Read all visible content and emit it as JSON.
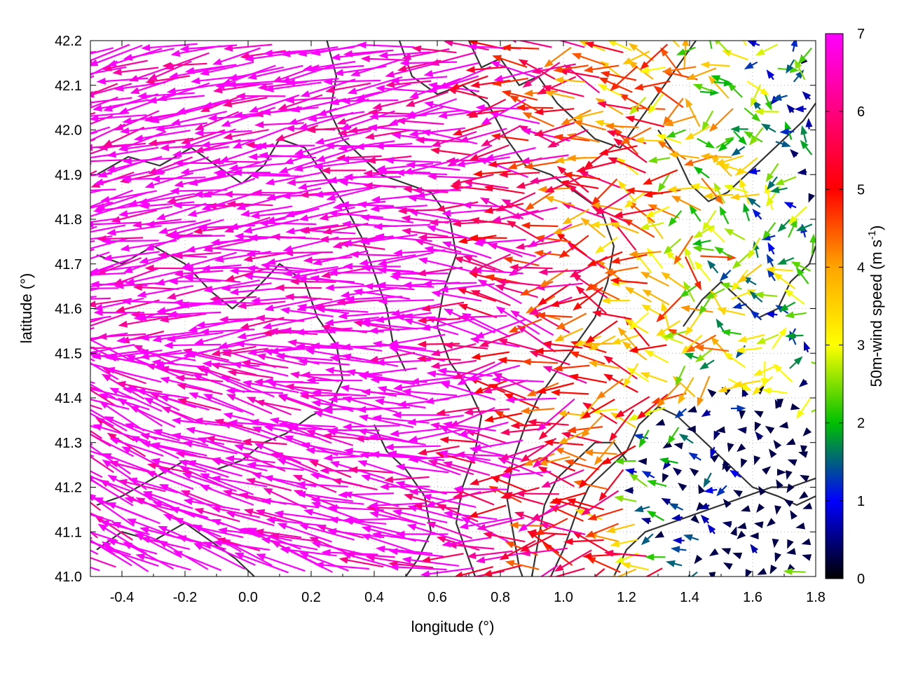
{
  "chart_data": {
    "type": "vector-field",
    "xlabel": "longitude (°)",
    "ylabel": "latitude (°)",
    "xlim": [
      -0.5,
      1.8
    ],
    "ylim": [
      41.0,
      42.2
    ],
    "xticks": [
      "-0.4",
      "-0.2",
      "0.0",
      "0.2",
      "0.4",
      "0.6",
      "0.8",
      "1.0",
      "1.2",
      "1.4",
      "1.6",
      "1.8"
    ],
    "xtick_values": [
      -0.4,
      -0.2,
      0.0,
      0.2,
      0.4,
      0.6,
      0.8,
      1.0,
      1.2,
      1.4,
      1.6,
      1.8
    ],
    "yticks": [
      "41.0",
      "41.1",
      "41.2",
      "41.3",
      "41.4",
      "41.5",
      "41.6",
      "41.7",
      "41.8",
      "41.9",
      "42.0",
      "42.1",
      "42.2"
    ],
    "ytick_values": [
      41.0,
      41.1,
      41.2,
      41.3,
      41.4,
      41.5,
      41.6,
      41.7,
      41.8,
      41.9,
      42.0,
      42.1,
      42.2
    ],
    "grid": "dotted",
    "colorbar": {
      "label": "50m-wind speed (m s-1)",
      "label_base": "50m-wind speed (m s",
      "label_exp": "-1",
      "label_close": ")",
      "range": [
        0,
        7
      ],
      "ticks": [
        "0",
        "1",
        "2",
        "3",
        "4",
        "5",
        "6",
        "7"
      ],
      "tick_values": [
        0,
        1,
        2,
        3,
        4,
        5,
        6,
        7
      ],
      "colors": [
        "#000000",
        "#0000ff",
        "#00c000",
        "#ffff00",
        "#ffa500",
        "#ff0000",
        "#ff00ff"
      ],
      "color_positions": [
        0,
        1,
        2,
        3,
        4,
        5,
        7
      ]
    },
    "contours": [
      {
        "level": "terrain",
        "points": [
          [
            -0.48,
            41.72
          ],
          [
            -0.4,
            41.7
          ],
          [
            -0.3,
            41.74
          ],
          [
            -0.2,
            41.7
          ],
          [
            -0.12,
            41.64
          ],
          [
            -0.05,
            41.6
          ],
          [
            0.02,
            41.64
          ],
          [
            0.1,
            41.7
          ],
          [
            0.18,
            41.66
          ],
          [
            0.22,
            41.58
          ],
          [
            0.28,
            41.52
          ],
          [
            0.3,
            41.44
          ],
          [
            0.26,
            41.38
          ],
          [
            0.2,
            41.36
          ],
          [
            0.12,
            41.32
          ],
          [
            0.05,
            41.3
          ],
          [
            -0.02,
            41.26
          ],
          [
            -0.1,
            41.24
          ],
          [
            -0.2,
            41.26
          ],
          [
            -0.3,
            41.22
          ],
          [
            -0.4,
            41.18
          ],
          [
            -0.48,
            41.16
          ]
        ]
      },
      {
        "level": "terrain",
        "points": [
          [
            -0.48,
            41.9
          ],
          [
            -0.38,
            41.94
          ],
          [
            -0.28,
            41.92
          ],
          [
            -0.18,
            41.96
          ],
          [
            -0.1,
            41.92
          ],
          [
            -0.02,
            41.88
          ],
          [
            0.05,
            41.92
          ],
          [
            0.1,
            41.98
          ],
          [
            0.18,
            41.96
          ],
          [
            0.24,
            41.9
          ],
          [
            0.3,
            41.84
          ],
          [
            0.36,
            41.76
          ],
          [
            0.4,
            41.68
          ],
          [
            0.44,
            41.6
          ],
          [
            0.46,
            41.52
          ],
          [
            0.5,
            41.46
          ]
        ]
      },
      {
        "level": "terrain",
        "points": [
          [
            0.25,
            42.2
          ],
          [
            0.28,
            42.12
          ],
          [
            0.26,
            42.04
          ],
          [
            0.3,
            41.98
          ],
          [
            0.36,
            41.94
          ],
          [
            0.42,
            41.9
          ],
          [
            0.5,
            41.88
          ],
          [
            0.58,
            41.86
          ],
          [
            0.64,
            41.8
          ],
          [
            0.66,
            41.72
          ],
          [
            0.62,
            41.64
          ],
          [
            0.6,
            41.56
          ],
          [
            0.64,
            41.48
          ],
          [
            0.7,
            41.42
          ],
          [
            0.74,
            41.36
          ],
          [
            0.72,
            41.28
          ],
          [
            0.68,
            41.2
          ],
          [
            0.66,
            41.12
          ],
          [
            0.7,
            41.04
          ],
          [
            0.72,
            41.0
          ]
        ]
      },
      {
        "level": "terrain",
        "points": [
          [
            0.48,
            42.2
          ],
          [
            0.52,
            42.12
          ],
          [
            0.6,
            42.08
          ],
          [
            0.68,
            42.1
          ],
          [
            0.76,
            42.06
          ],
          [
            0.82,
            41.98
          ],
          [
            0.88,
            41.92
          ],
          [
            0.96,
            41.9
          ],
          [
            1.04,
            41.86
          ],
          [
            1.12,
            41.82
          ],
          [
            1.16,
            41.74
          ],
          [
            1.14,
            41.66
          ],
          [
            1.1,
            41.58
          ],
          [
            1.04,
            41.52
          ],
          [
            0.98,
            41.46
          ],
          [
            0.92,
            41.4
          ],
          [
            0.88,
            41.34
          ],
          [
            0.84,
            41.26
          ],
          [
            0.82,
            41.18
          ],
          [
            0.84,
            41.1
          ],
          [
            0.86,
            41.02
          ],
          [
            0.87,
            41.0
          ]
        ]
      },
      {
        "level": "terrain",
        "points": [
          [
            0.7,
            42.2
          ],
          [
            0.74,
            42.14
          ],
          [
            0.8,
            42.16
          ],
          [
            0.86,
            42.1
          ],
          [
            0.92,
            42.12
          ],
          [
            0.98,
            42.06
          ],
          [
            1.04,
            42.02
          ],
          [
            1.1,
            41.98
          ],
          [
            1.18,
            41.96
          ],
          [
            1.24,
            42.02
          ],
          [
            1.3,
            42.08
          ],
          [
            1.36,
            42.14
          ],
          [
            1.42,
            42.2
          ]
        ]
      },
      {
        "level": "terrain",
        "points": [
          [
            0.96,
            41.0
          ],
          [
            1.0,
            41.06
          ],
          [
            1.04,
            41.14
          ],
          [
            1.08,
            41.2
          ],
          [
            1.14,
            41.24
          ],
          [
            1.2,
            41.28
          ],
          [
            1.24,
            41.34
          ],
          [
            1.3,
            41.38
          ],
          [
            1.36,
            41.36
          ],
          [
            1.42,
            41.32
          ],
          [
            1.48,
            41.28
          ],
          [
            1.54,
            41.24
          ],
          [
            1.6,
            41.2
          ],
          [
            1.68,
            41.18
          ],
          [
            1.74,
            41.16
          ],
          [
            1.8,
            41.18
          ]
        ]
      },
      {
        "level": "terrain",
        "points": [
          [
            1.16,
            41.0
          ],
          [
            1.2,
            41.06
          ],
          [
            1.26,
            41.1
          ],
          [
            1.34,
            41.12
          ],
          [
            1.42,
            41.14
          ],
          [
            1.5,
            41.16
          ],
          [
            1.58,
            41.18
          ],
          [
            1.66,
            41.2
          ],
          [
            1.72,
            41.2
          ],
          [
            1.8,
            41.22
          ]
        ]
      },
      {
        "level": "terrain",
        "points": [
          [
            1.38,
            41.56
          ],
          [
            1.44,
            41.62
          ],
          [
            1.5,
            41.66
          ],
          [
            1.56,
            41.62
          ],
          [
            1.62,
            41.58
          ],
          [
            1.68,
            41.6
          ],
          [
            1.72,
            41.66
          ],
          [
            1.78,
            41.7
          ],
          [
            1.8,
            41.74
          ]
        ]
      },
      {
        "level": "terrain",
        "points": [
          [
            1.3,
            42.0
          ],
          [
            1.36,
            41.94
          ],
          [
            1.4,
            41.88
          ],
          [
            1.46,
            41.84
          ],
          [
            1.52,
            41.86
          ],
          [
            1.58,
            41.9
          ],
          [
            1.64,
            41.94
          ],
          [
            1.7,
            41.98
          ],
          [
            1.76,
            42.02
          ],
          [
            1.8,
            42.06
          ]
        ]
      },
      {
        "level": "terrain",
        "points": [
          [
            -0.48,
            41.06
          ],
          [
            -0.4,
            41.1
          ],
          [
            -0.3,
            41.08
          ],
          [
            -0.2,
            41.12
          ],
          [
            -0.12,
            41.08
          ],
          [
            -0.04,
            41.04
          ],
          [
            0.02,
            41.0
          ]
        ]
      },
      {
        "level": "terrain",
        "points": [
          [
            0.4,
            41.34
          ],
          [
            0.44,
            41.28
          ],
          [
            0.5,
            41.24
          ],
          [
            0.56,
            41.18
          ],
          [
            0.58,
            41.1
          ],
          [
            0.54,
            41.04
          ],
          [
            0.5,
            41.0
          ]
        ]
      },
      {
        "level": "terrain",
        "points": [
          [
            0.9,
            41.0
          ],
          [
            0.92,
            41.08
          ],
          [
            0.94,
            41.16
          ],
          [
            0.98,
            41.22
          ],
          [
            1.04,
            41.26
          ],
          [
            1.1,
            41.3
          ],
          [
            1.16,
            41.3
          ],
          [
            1.2,
            41.26
          ]
        ]
      }
    ]
  }
}
